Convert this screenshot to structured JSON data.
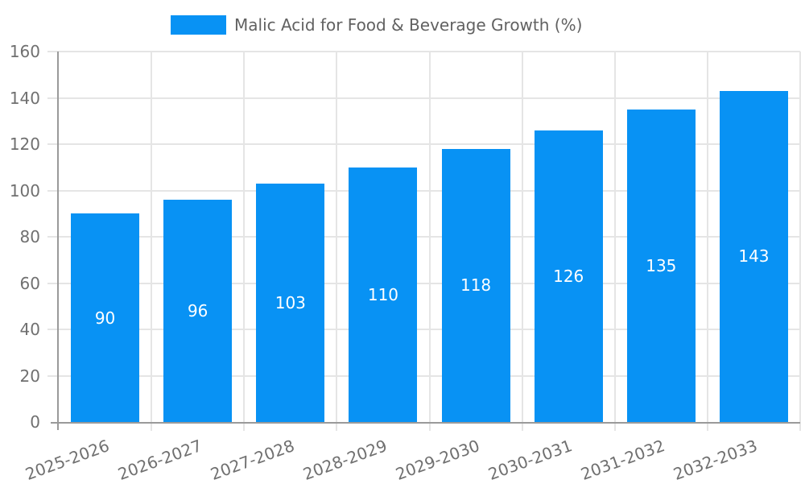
{
  "chart": {
    "legend": {
      "label": "Malic Acid for Food & Beverage Growth (%)",
      "swatch_color": "#0892f4"
    }
  },
  "chart_data": {
    "type": "bar",
    "title": "Malic Acid for Food & Beverage Growth (%)",
    "categories": [
      "2025-2026",
      "2026-2027",
      "2027-2028",
      "2028-2029",
      "2029-2030",
      "2030-2031",
      "2031-2032",
      "2032-2033"
    ],
    "values": [
      90,
      96,
      103,
      110,
      118,
      126,
      135,
      143
    ],
    "bar_color": "#0892f4",
    "bar_label_color": "#ffffff",
    "xlabel": "",
    "ylabel": "",
    "ylim": [
      0,
      160
    ],
    "yticks": [
      0,
      20,
      40,
      60,
      80,
      100,
      120,
      140,
      160
    ],
    "grid": true,
    "legend_position": "top-center",
    "xtick_rotation_deg": 20
  }
}
